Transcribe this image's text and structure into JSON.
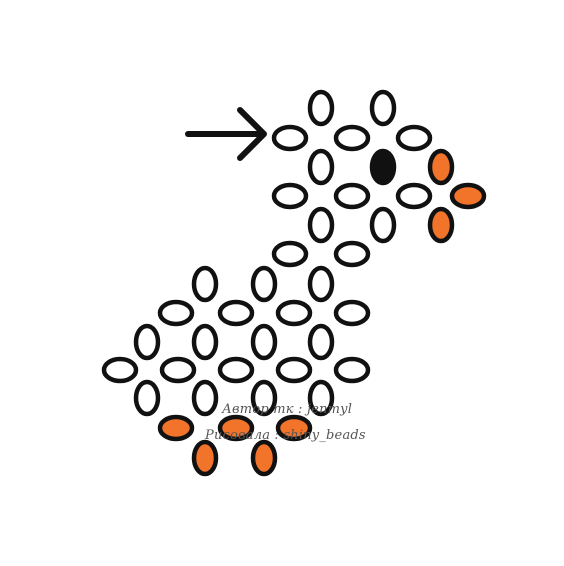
{
  "diagram": {
    "subject": "beaded duck pattern",
    "bead_colors": {
      "white": "#ffffff",
      "black": "#111111",
      "orange": "#f2742b",
      "outline": "#111111"
    },
    "arrow_icon": "arrow-right-icon",
    "credits": {
      "author": "Автор mк : jenmyl",
      "scheme": "Рисовала : shiny_beads"
    }
  }
}
